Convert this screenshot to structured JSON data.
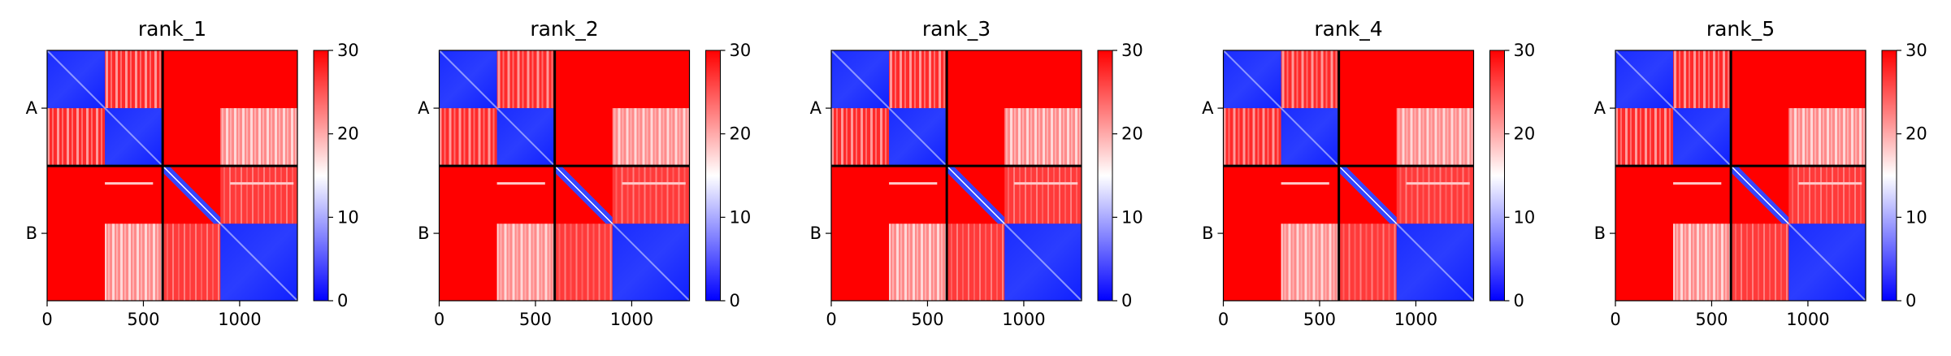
{
  "chart_data": [
    {
      "type": "heatmap",
      "title": "rank_1",
      "row_labels": [
        "A",
        "B"
      ],
      "x_ticks": [
        "0",
        "500",
        "1000"
      ],
      "xlim": [
        0,
        1300
      ],
      "colorbar": {
        "ticks": [
          "0",
          "10",
          "20",
          "30"
        ],
        "range": [
          0,
          30
        ],
        "colors": [
          "#0000ff",
          "#ffffff",
          "#ff0000"
        ]
      },
      "chain_boundary": 600,
      "blocks": [
        [
          0,
          300
        ],
        [
          300,
          600
        ],
        [
          600,
          900
        ],
        [
          900,
          1300
        ]
      ]
    },
    {
      "type": "heatmap",
      "title": "rank_2",
      "row_labels": [
        "A",
        "B"
      ],
      "x_ticks": [
        "0",
        "500",
        "1000"
      ],
      "xlim": [
        0,
        1300
      ],
      "colorbar": {
        "ticks": [
          "0",
          "10",
          "20",
          "30"
        ],
        "range": [
          0,
          30
        ],
        "colors": [
          "#0000ff",
          "#ffffff",
          "#ff0000"
        ]
      },
      "chain_boundary": 600,
      "blocks": [
        [
          0,
          300
        ],
        [
          300,
          600
        ],
        [
          600,
          900
        ],
        [
          900,
          1300
        ]
      ]
    },
    {
      "type": "heatmap",
      "title": "rank_3",
      "row_labels": [
        "A",
        "B"
      ],
      "x_ticks": [
        "0",
        "500",
        "1000"
      ],
      "xlim": [
        0,
        1300
      ],
      "colorbar": {
        "ticks": [
          "0",
          "10",
          "20",
          "30"
        ],
        "range": [
          0,
          30
        ],
        "colors": [
          "#0000ff",
          "#ffffff",
          "#ff0000"
        ]
      },
      "chain_boundary": 600,
      "blocks": [
        [
          0,
          300
        ],
        [
          300,
          600
        ],
        [
          600,
          900
        ],
        [
          900,
          1300
        ]
      ]
    },
    {
      "type": "heatmap",
      "title": "rank_4",
      "row_labels": [
        "A",
        "B"
      ],
      "x_ticks": [
        "0",
        "500",
        "1000"
      ],
      "xlim": [
        0,
        1300
      ],
      "colorbar": {
        "ticks": [
          "0",
          "10",
          "20",
          "30"
        ],
        "range": [
          0,
          30
        ],
        "colors": [
          "#0000ff",
          "#ffffff",
          "#ff0000"
        ]
      },
      "chain_boundary": 600,
      "blocks": [
        [
          0,
          300
        ],
        [
          300,
          600
        ],
        [
          600,
          900
        ],
        [
          900,
          1300
        ]
      ]
    },
    {
      "type": "heatmap",
      "title": "rank_5",
      "row_labels": [
        "A",
        "B"
      ],
      "x_ticks": [
        "0",
        "500",
        "1000"
      ],
      "xlim": [
        0,
        1300
      ],
      "colorbar": {
        "ticks": [
          "0",
          "10",
          "20",
          "30"
        ],
        "range": [
          0,
          30
        ],
        "colors": [
          "#0000ff",
          "#ffffff",
          "#ff0000"
        ]
      },
      "chain_boundary": 600,
      "blocks": [
        [
          0,
          300
        ],
        [
          300,
          600
        ],
        [
          600,
          900
        ],
        [
          900,
          1300
        ]
      ]
    }
  ]
}
